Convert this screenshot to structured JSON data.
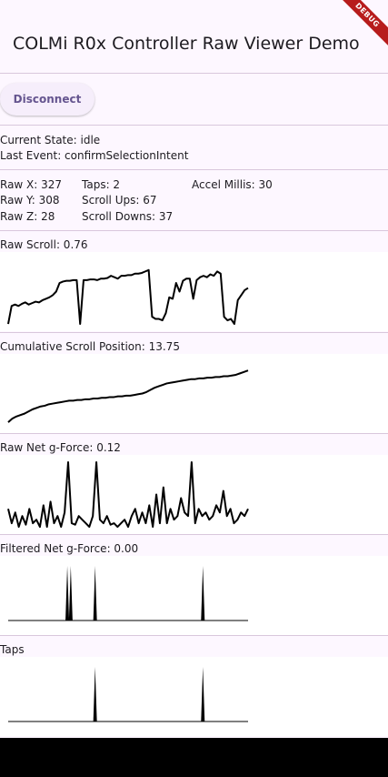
{
  "header": {
    "title": "COLMi R0x Controller Raw Viewer Demo",
    "debug_label": "DEBUG"
  },
  "controls": {
    "disconnect_label": "Disconnect"
  },
  "status": {
    "current_state": "Current State: idle",
    "last_event": "Last Event: confirmSelectionIntent"
  },
  "stats": {
    "raw_x": "Raw X: 327",
    "raw_y": "Raw Y: 308",
    "raw_z": "Raw Z: 28",
    "taps": "Taps: 2",
    "scroll_ups": "Scroll Ups: 67",
    "scroll_downs": "Scroll Downs: 37",
    "accel_millis": "Accel Millis: 30"
  },
  "charts": {
    "raw_scroll": {
      "title": "Raw Scroll: 0.76",
      "values": [
        0.05,
        0.3,
        0.32,
        0.3,
        0.33,
        0.35,
        0.32,
        0.34,
        0.36,
        0.35,
        0.38,
        0.4,
        0.42,
        0.45,
        0.5,
        0.62,
        0.64,
        0.65,
        0.65,
        0.66,
        0.66,
        0.05,
        0.66,
        0.66,
        0.67,
        0.67,
        0.66,
        0.68,
        0.68,
        0.69,
        0.72,
        0.7,
        0.68,
        0.72,
        0.72,
        0.73,
        0.73,
        0.75,
        0.75,
        0.76,
        0.78,
        0.8,
        0.15,
        0.12,
        0.12,
        0.1,
        0.2,
        0.42,
        0.4,
        0.62,
        0.5,
        0.65,
        0.68,
        0.68,
        0.4,
        0.66,
        0.7,
        0.72,
        0.7,
        0.74,
        0.72,
        0.78,
        0.75,
        0.15,
        0.1,
        0.12,
        0.05,
        0.38,
        0.45,
        0.52,
        0.55
      ]
    },
    "cumulative_scroll": {
      "title": "Cumulative Scroll Position: 13.75",
      "values": [
        0.1,
        0.15,
        0.18,
        0.2,
        0.22,
        0.25,
        0.28,
        0.3,
        0.32,
        0.33,
        0.35,
        0.36,
        0.37,
        0.38,
        0.39,
        0.4,
        0.4,
        0.41,
        0.41,
        0.42,
        0.42,
        0.43,
        0.43,
        0.44,
        0.44,
        0.45,
        0.45,
        0.46,
        0.46,
        0.47,
        0.47,
        0.48,
        0.49,
        0.5,
        0.52,
        0.55,
        0.58,
        0.6,
        0.62,
        0.64,
        0.65,
        0.66,
        0.67,
        0.68,
        0.69,
        0.7,
        0.7,
        0.71,
        0.71,
        0.72,
        0.72,
        0.73,
        0.73,
        0.74,
        0.74,
        0.75,
        0.76,
        0.78,
        0.8,
        0.82
      ]
    },
    "raw_gforce": {
      "title": "Raw Net g-Force: 0.12",
      "values": [
        0.3,
        0.1,
        0.25,
        0.05,
        0.2,
        0.08,
        0.3,
        0.1,
        0.15,
        0.05,
        0.35,
        0.05,
        0.4,
        0.1,
        0.2,
        0.05,
        0.25,
        0.95,
        0.1,
        0.08,
        0.2,
        0.15,
        0.1,
        0.05,
        0.2,
        0.95,
        0.15,
        0.1,
        0.2,
        0.08,
        0.1,
        0.05,
        0.1,
        0.15,
        0.05,
        0.2,
        0.3,
        0.1,
        0.25,
        0.1,
        0.35,
        0.05,
        0.5,
        0.1,
        0.6,
        0.1,
        0.3,
        0.15,
        0.2,
        0.45,
        0.25,
        0.2,
        0.95,
        0.1,
        0.3,
        0.2,
        0.25,
        0.15,
        0.2,
        0.35,
        0.25,
        0.55,
        0.2,
        0.3,
        0.1,
        0.15,
        0.25,
        0.2,
        0.3
      ]
    },
    "filtered_gforce": {
      "title": "Filtered Net g-Force: 0.00",
      "values": [
        0,
        0,
        0,
        0,
        0,
        0,
        0,
        0,
        0,
        0,
        0,
        0,
        0,
        0,
        0,
        0,
        0,
        1,
        1,
        0,
        0,
        0,
        0,
        0,
        0,
        1,
        0,
        0,
        0,
        0,
        0,
        0,
        0,
        0,
        0,
        0,
        0,
        0,
        0,
        0,
        0,
        0,
        0,
        0,
        0,
        0,
        0,
        0,
        0,
        0,
        0,
        0,
        0,
        0,
        0,
        0,
        1,
        0,
        0,
        0,
        0,
        0,
        0,
        0,
        0,
        0,
        0,
        0,
        0,
        0
      ]
    },
    "taps": {
      "title": "Taps",
      "values": [
        0,
        0,
        0,
        0,
        0,
        0,
        0,
        0,
        0,
        0,
        0,
        0,
        0,
        0,
        0,
        0,
        0,
        0,
        0,
        0,
        0,
        0,
        0,
        0,
        0,
        1,
        0,
        0,
        0,
        0,
        0,
        0,
        0,
        0,
        0,
        0,
        0,
        0,
        0,
        0,
        0,
        0,
        0,
        0,
        0,
        0,
        0,
        0,
        0,
        0,
        0,
        0,
        0,
        0,
        0,
        0,
        1,
        0,
        0,
        0,
        0,
        0,
        0,
        0,
        0,
        0,
        0,
        0,
        0,
        0
      ]
    }
  }
}
